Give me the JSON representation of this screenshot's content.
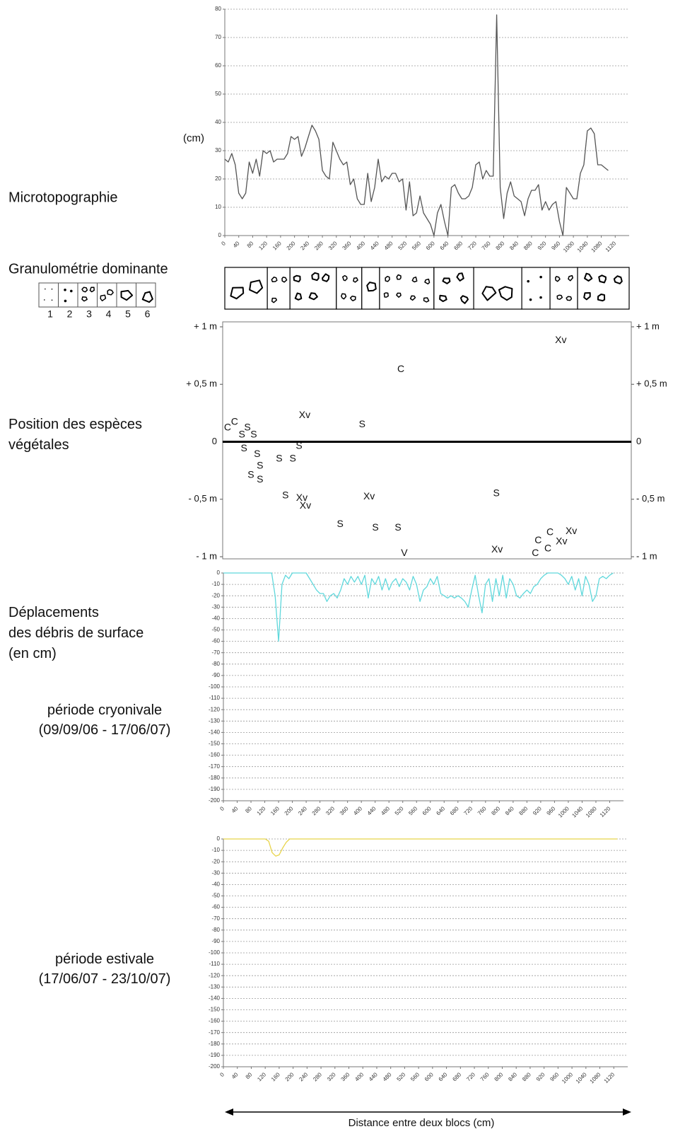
{
  "chart_data": [
    {
      "type": "line",
      "side_label": "Microtopographie",
      "ylabel": "(cm)",
      "color": "#555555",
      "x": [
        0,
        10,
        20,
        30,
        40,
        50,
        60,
        70,
        80,
        90,
        100,
        110,
        120,
        130,
        140,
        150,
        160,
        170,
        180,
        190,
        200,
        210,
        220,
        230,
        240,
        250,
        260,
        270,
        280,
        290,
        300,
        310,
        320,
        330,
        340,
        350,
        360,
        370,
        380,
        390,
        400,
        410,
        420,
        430,
        440,
        450,
        460,
        470,
        480,
        490,
        500,
        510,
        520,
        530,
        540,
        550,
        560,
        570,
        580,
        590,
        600,
        610,
        620,
        630,
        640,
        650,
        660,
        670,
        680,
        690,
        700,
        710,
        720,
        730,
        740,
        750,
        760,
        770,
        780,
        790,
        800,
        810,
        820,
        830,
        840,
        850,
        860,
        870,
        880,
        890,
        900,
        910,
        920,
        930,
        940,
        950,
        960,
        970,
        980,
        990,
        1000,
        1010,
        1020,
        1030,
        1040,
        1050,
        1060,
        1070,
        1080,
        1090,
        1100
      ],
      "values": [
        27,
        26,
        29,
        25,
        15,
        13,
        15,
        26,
        22,
        27,
        21,
        30,
        29,
        30,
        26,
        27,
        27,
        27,
        29,
        35,
        34,
        35,
        28,
        31,
        35,
        39,
        37,
        34,
        23,
        21,
        20,
        33,
        30,
        27,
        25,
        26,
        18,
        20,
        13,
        11,
        11,
        22,
        12,
        17,
        27,
        19,
        21,
        20,
        22,
        22,
        19,
        20,
        9,
        19,
        7,
        8,
        14,
        8,
        6,
        4,
        0,
        8,
        11,
        5,
        0,
        17,
        18,
        15,
        13,
        13,
        14,
        17,
        25,
        26,
        20,
        23,
        21,
        21,
        78,
        17,
        6,
        15,
        19,
        14,
        13,
        12,
        7,
        13,
        16,
        16,
        18,
        9,
        12,
        9,
        11,
        12,
        5,
        0,
        17,
        15,
        13,
        13,
        22,
        25,
        37,
        38,
        36,
        25,
        25,
        24,
        23
      ],
      "xlim": [
        0,
        1160
      ],
      "ylim": [
        0,
        80
      ],
      "xticks": [
        0,
        40,
        80,
        120,
        160,
        200,
        240,
        280,
        320,
        360,
        400,
        440,
        480,
        520,
        560,
        600,
        640,
        680,
        720,
        760,
        800,
        840,
        880,
        920,
        960,
        1000,
        1040,
        1080,
        1120
      ],
      "yticks": [
        0,
        10,
        20,
        30,
        40,
        50,
        60,
        70,
        80
      ],
      "grid": true
    },
    {
      "type": "strip",
      "side_label": "Granulométrie dominante",
      "legend_labels": [
        "1",
        "2",
        "3",
        "4",
        "5",
        "6"
      ],
      "edges": [
        0,
        122,
        187,
        320,
        393,
        444,
        600,
        714,
        852,
        933,
        1012,
        1160
      ],
      "classes": [
        5,
        3,
        4,
        3,
        5,
        3,
        4,
        5,
        2,
        3,
        4
      ],
      "xlim": [
        0,
        1160
      ]
    },
    {
      "type": "scatter",
      "side_label": [
        "Position des espèces",
        "végétales"
      ],
      "x": [
        8,
        28,
        49,
        65,
        83,
        55,
        93,
        101,
        75,
        101,
        156,
        195,
        213,
        229,
        394,
        505,
        964,
        174,
        221,
        231,
        414,
        779,
        331,
        432,
        497,
        515,
        781,
        933,
        994,
        899,
        966,
        927,
        891
      ],
      "y": [
        0.12,
        0.17,
        0.06,
        0.12,
        0.06,
        -0.06,
        -0.11,
        -0.21,
        -0.29,
        -0.33,
        -0.15,
        -0.15,
        -0.04,
        0.23,
        0.15,
        0.63,
        0.88,
        -0.47,
        -0.49,
        -0.56,
        -0.48,
        -0.45,
        -0.72,
        -0.75,
        -0.75,
        -0.97,
        -0.94,
        -0.79,
        -0.78,
        -0.86,
        -0.87,
        -0.93,
        -0.97
      ],
      "labels": [
        "C",
        "C",
        "S",
        "S",
        "S",
        "S",
        "S",
        "S",
        "S",
        "S",
        "S",
        "S",
        "S",
        "Xv",
        "S",
        "C",
        "Xv",
        "S",
        "Xv",
        "Xv",
        "Xv",
        "S",
        "S",
        "S",
        "S",
        "V",
        "Xv",
        "C",
        "Xv",
        "C",
        "Xv",
        "C",
        "C"
      ],
      "xlim": [
        0,
        1160
      ],
      "ylim": [
        -1,
        1
      ],
      "yticks": [
        {
          "value": 1,
          "label": "+ 1 m"
        },
        {
          "value": 0.5,
          "label": "+ 0,5 m"
        },
        0,
        {
          "value": -0.5,
          "label": "- 0,5 m"
        },
        {
          "value": -1,
          "label": "- 1 m"
        }
      ],
      "zero_line": true
    },
    {
      "type": "line",
      "side_label": [
        "Déplacements",
        "des débris de surface",
        "(en cm)"
      ],
      "period_label": [
        "période cryonivale",
        "(09/09/06 - 17/06/07)"
      ],
      "color": "#5fd8dc",
      "x": [
        0,
        10,
        20,
        30,
        40,
        50,
        60,
        70,
        80,
        90,
        100,
        110,
        120,
        130,
        140,
        150,
        160,
        170,
        180,
        190,
        200,
        210,
        220,
        230,
        240,
        250,
        260,
        270,
        280,
        290,
        300,
        310,
        320,
        330,
        340,
        350,
        360,
        370,
        380,
        390,
        400,
        410,
        420,
        430,
        440,
        450,
        460,
        470,
        480,
        490,
        500,
        510,
        520,
        530,
        540,
        550,
        560,
        570,
        580,
        590,
        600,
        610,
        620,
        630,
        640,
        650,
        660,
        670,
        680,
        690,
        700,
        710,
        720,
        730,
        740,
        750,
        760,
        770,
        780,
        790,
        800,
        810,
        820,
        830,
        840,
        850,
        860,
        870,
        880,
        890,
        900,
        910,
        920,
        930,
        940,
        950,
        960,
        970,
        980,
        990,
        1000,
        1010,
        1020,
        1030,
        1040,
        1050,
        1060,
        1070,
        1080,
        1090,
        1100,
        1110,
        1120,
        1130
      ],
      "values": [
        0,
        0,
        0,
        0,
        0,
        0,
        0,
        0,
        0,
        0,
        0,
        0,
        0,
        0,
        0,
        -20,
        -60,
        -10,
        -2,
        -5,
        0,
        0,
        0,
        0,
        0,
        -5,
        -10,
        -15,
        -18,
        -18,
        -25,
        -20,
        -18,
        -22,
        -15,
        -5,
        -10,
        -3,
        -8,
        -3,
        -10,
        -2,
        -22,
        -5,
        -10,
        -3,
        -15,
        -5,
        -15,
        -8,
        -5,
        -12,
        -5,
        -8,
        -15,
        -3,
        -10,
        -25,
        -15,
        -12,
        -5,
        -10,
        -3,
        -18,
        -20,
        -22,
        -20,
        -22,
        -20,
        -22,
        -25,
        -30,
        -15,
        -2,
        -20,
        -35,
        -10,
        -5,
        -25,
        -5,
        -20,
        -2,
        -22,
        -5,
        -10,
        -20,
        -22,
        -18,
        -15,
        -18,
        -12,
        -10,
        -5,
        -2,
        0,
        0,
        0,
        0,
        -2,
        -5,
        -10,
        -3,
        -15,
        -5,
        -20,
        -3,
        -10,
        -25,
        -20,
        -5,
        -3,
        -5,
        -2,
        0
      ],
      "xlim": [
        0,
        1160
      ],
      "ylim": [
        -200,
        0
      ],
      "xticks": [
        0,
        40,
        80,
        120,
        160,
        200,
        240,
        280,
        320,
        360,
        400,
        440,
        480,
        520,
        560,
        600,
        640,
        680,
        720,
        760,
        800,
        840,
        880,
        920,
        960,
        1000,
        1040,
        1080,
        1120
      ],
      "yticks": [
        0,
        -10,
        -20,
        -30,
        -40,
        -50,
        -60,
        -70,
        -80,
        -90,
        -100,
        -110,
        -120,
        -130,
        -140,
        -150,
        -160,
        -170,
        -180,
        -190,
        -200
      ],
      "grid": true
    },
    {
      "type": "line",
      "period_label": [
        "période estivale",
        "(17/06/07 - 23/10/07)"
      ],
      "color": "#e8d44a",
      "x": [
        0,
        10,
        20,
        30,
        40,
        50,
        60,
        70,
        80,
        90,
        100,
        110,
        120,
        130,
        140,
        150,
        160,
        170,
        180,
        190,
        200,
        210,
        220,
        230,
        240,
        250,
        260,
        270,
        280,
        290,
        300,
        310,
        320,
        330,
        340,
        350,
        360,
        370,
        380,
        390,
        400,
        410,
        420,
        430,
        440,
        450,
        460,
        470,
        480,
        490,
        500,
        510,
        520,
        530,
        540,
        550,
        560,
        570,
        580,
        590,
        600,
        610,
        620,
        630,
        640,
        650,
        660,
        670,
        680,
        690,
        700,
        710,
        720,
        730,
        740,
        750,
        760,
        770,
        780,
        790,
        800,
        810,
        820,
        830,
        840,
        850,
        860,
        870,
        880,
        890,
        900,
        910,
        920,
        930,
        940,
        950,
        960,
        970,
        980,
        990,
        1000,
        1010,
        1020,
        1030,
        1040,
        1050,
        1060,
        1070,
        1080,
        1090,
        1100,
        1110,
        1120,
        1130
      ],
      "values": [
        0,
        0,
        0,
        0,
        0,
        0,
        0,
        0,
        0,
        0,
        0,
        0,
        0,
        -2,
        -12,
        -15,
        -14,
        -8,
        -3,
        0,
        0,
        0,
        0,
        0,
        0,
        0,
        0,
        0,
        0,
        0,
        0,
        0,
        0,
        0,
        0,
        0,
        0,
        0,
        0,
        0,
        0,
        0,
        0,
        0,
        0,
        0,
        0,
        0,
        0,
        0,
        0,
        0,
        0,
        0,
        0,
        0,
        0,
        0,
        0,
        0,
        0,
        0,
        0,
        0,
        0,
        0,
        0,
        0,
        0,
        0,
        0,
        0,
        0,
        0,
        0,
        0,
        0,
        0,
        0,
        0,
        0,
        0,
        0,
        0,
        0,
        0,
        0,
        0,
        0,
        0,
        0,
        0,
        0,
        0,
        0,
        0,
        0,
        0,
        0,
        0,
        0,
        0,
        0,
        0,
        0,
        0,
        0,
        0,
        0,
        0,
        0,
        0,
        0,
        0
      ],
      "xlim": [
        0,
        1160
      ],
      "ylim": [
        -200,
        0
      ],
      "xticks": [
        0,
        40,
        80,
        120,
        160,
        200,
        240,
        280,
        320,
        360,
        400,
        440,
        480,
        520,
        560,
        600,
        640,
        680,
        720,
        760,
        800,
        840,
        880,
        920,
        960,
        1000,
        1040,
        1080,
        1120
      ],
      "yticks": [
        0,
        -10,
        -20,
        -30,
        -40,
        -50,
        -60,
        -70,
        -80,
        -90,
        -100,
        -110,
        -120,
        -130,
        -140,
        -150,
        -160,
        -170,
        -180,
        -190,
        -200
      ],
      "grid": true
    }
  ],
  "x_axis_label": "Distance entre deux blocs (cm)"
}
